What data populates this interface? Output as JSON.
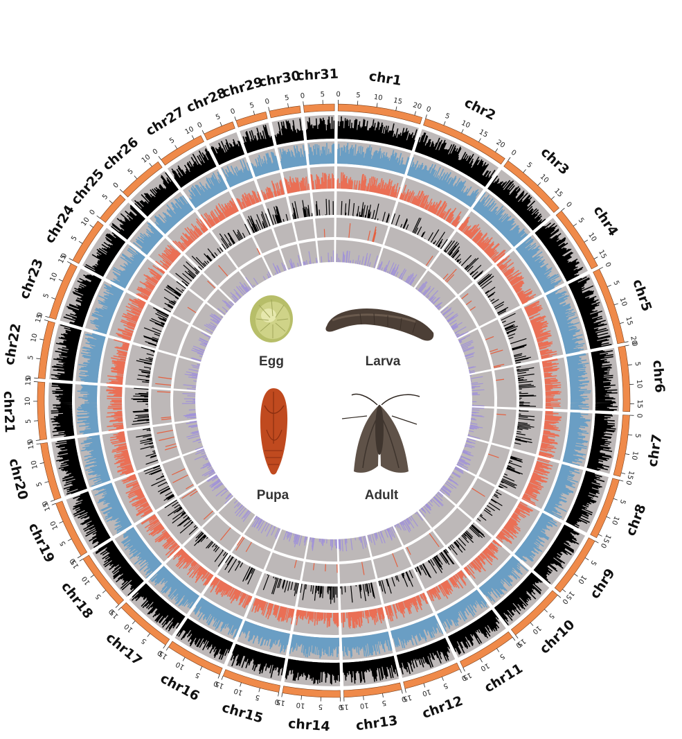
{
  "stages": [
    "Egg",
    "Larva",
    "Pupa",
    "Adult"
  ],
  "colors": {
    "ideogram": "#ef8a4a",
    "track_background": "#bdb8b8",
    "track1": "#000000",
    "track2": "#6a9ec4",
    "track3": "#ea6f55",
    "track4": "#000000",
    "track5": "#e46040",
    "track6": "#a193d8"
  },
  "chromosomes": [
    {
      "name": "chr1",
      "ticks": [
        "0",
        "5",
        "10",
        "15",
        "20"
      ]
    },
    {
      "name": "chr2",
      "ticks": [
        "0",
        "5",
        "10",
        "15",
        "20"
      ]
    },
    {
      "name": "chr3",
      "ticks": [
        "0",
        "5",
        "10",
        "15"
      ]
    },
    {
      "name": "chr4",
      "ticks": [
        "0",
        "5",
        "10",
        "15"
      ]
    },
    {
      "name": "chr5",
      "ticks": [
        "0",
        "5",
        "10",
        "15",
        "20"
      ]
    },
    {
      "name": "chr6",
      "ticks": [
        "0",
        "5",
        "10",
        "15"
      ]
    },
    {
      "name": "chr7",
      "ticks": [
        "0",
        "5",
        "10",
        "15"
      ]
    },
    {
      "name": "chr8",
      "ticks": [
        "0",
        "5",
        "10",
        "15"
      ]
    },
    {
      "name": "chr9",
      "ticks": [
        "0",
        "5",
        "10",
        "15"
      ]
    },
    {
      "name": "chr10",
      "ticks": [
        "0",
        "5",
        "10",
        "15"
      ]
    },
    {
      "name": "chr11",
      "ticks": [
        "0",
        "5",
        "10",
        "15"
      ]
    },
    {
      "name": "chr12",
      "ticks": [
        "0",
        "5",
        "10",
        "15"
      ]
    },
    {
      "name": "chr13",
      "ticks": [
        "0",
        "5",
        "10",
        "15"
      ]
    },
    {
      "name": "chr14",
      "ticks": [
        "0",
        "5",
        "10",
        "15"
      ]
    },
    {
      "name": "chr15",
      "ticks": [
        "0",
        "5",
        "10",
        "15"
      ]
    },
    {
      "name": "chr16",
      "ticks": [
        "0",
        "5",
        "10",
        "15"
      ]
    },
    {
      "name": "chr17",
      "ticks": [
        "0",
        "5",
        "10",
        "15"
      ]
    },
    {
      "name": "chr18",
      "ticks": [
        "0",
        "5",
        "10",
        "15"
      ]
    },
    {
      "name": "chr19",
      "ticks": [
        "0",
        "5",
        "10",
        "15"
      ]
    },
    {
      "name": "chr20",
      "ticks": [
        "0",
        "5",
        "10",
        "15"
      ]
    },
    {
      "name": "chr21",
      "ticks": [
        "0",
        "5",
        "10",
        "15"
      ]
    },
    {
      "name": "chr22",
      "ticks": [
        "0",
        "5",
        "10",
        "15"
      ]
    },
    {
      "name": "chr23",
      "ticks": [
        "0",
        "5",
        "10",
        "15"
      ]
    },
    {
      "name": "chr24",
      "ticks": [
        "0",
        "5",
        "10"
      ]
    },
    {
      "name": "chr25",
      "ticks": [
        "0",
        "5"
      ]
    },
    {
      "name": "chr26",
      "ticks": [
        "0",
        "5",
        "10"
      ]
    },
    {
      "name": "chr27",
      "ticks": [
        "0",
        "5",
        "10"
      ]
    },
    {
      "name": "chr28",
      "ticks": [
        "0",
        "5"
      ]
    },
    {
      "name": "chr29",
      "ticks": [
        "0",
        "5"
      ]
    },
    {
      "name": "chr30",
      "ticks": [
        "0",
        "5"
      ]
    },
    {
      "name": "chr31",
      "ticks": [
        "0",
        "5"
      ]
    }
  ]
}
